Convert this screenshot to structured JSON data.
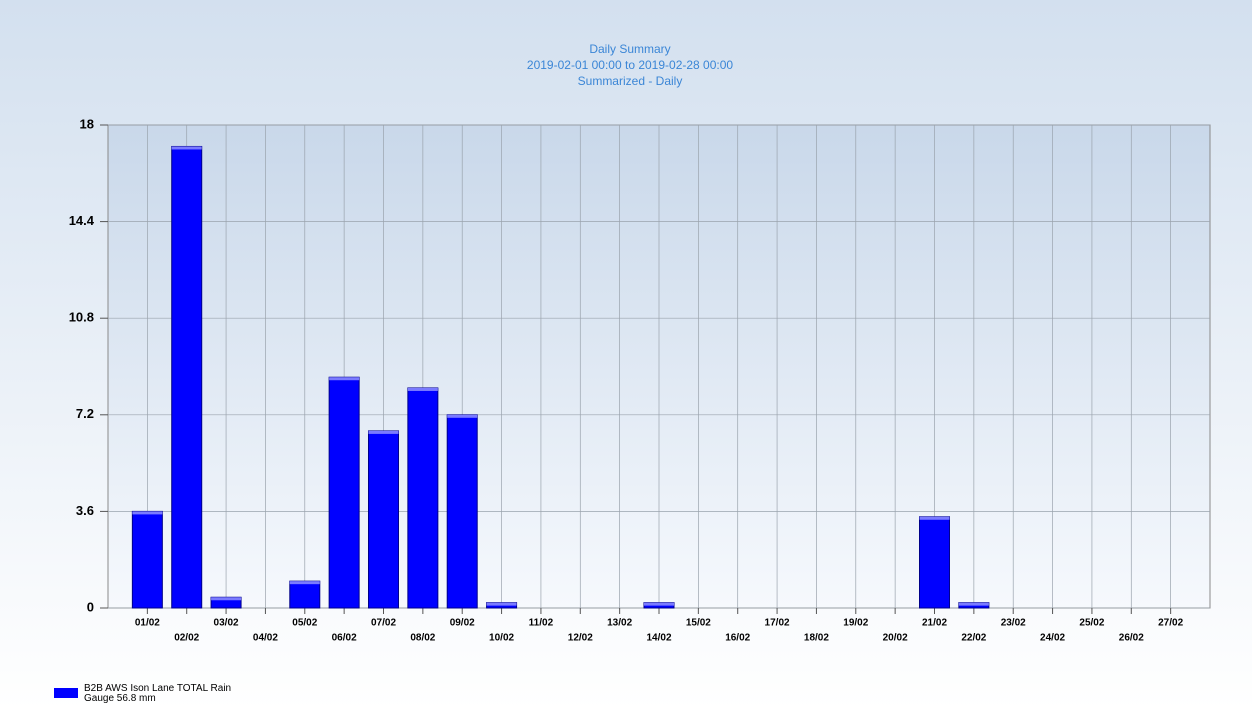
{
  "chart_data": {
    "type": "bar",
    "title": "Daily Summary",
    "subtitle": "2019-02-01 00:00 to 2019-02-28 00:00",
    "summary": "Summarized - Daily",
    "categories": [
      "01/02",
      "02/02",
      "03/02",
      "04/02",
      "05/02",
      "06/02",
      "07/02",
      "08/02",
      "09/02",
      "10/02",
      "11/02",
      "12/02",
      "13/02",
      "14/02",
      "15/02",
      "16/02",
      "17/02",
      "18/02",
      "19/02",
      "20/02",
      "21/02",
      "22/02",
      "23/02",
      "24/02",
      "25/02",
      "26/02",
      "27/02"
    ],
    "series": [
      {
        "name": "B2B AWS Ison Lane TOTAL Rain Gauge 56.8 mm",
        "color": "#0000ff",
        "values": [
          3.6,
          17.2,
          0.4,
          0,
          1.0,
          8.6,
          6.6,
          8.2,
          7.2,
          0.2,
          0,
          0,
          0,
          0.2,
          0,
          0,
          0,
          0,
          0,
          0,
          3.4,
          0.2,
          0,
          0,
          0,
          0,
          0
        ]
      }
    ],
    "ylim": [
      0,
      18
    ],
    "yticks": [
      0,
      3.6,
      7.2,
      10.8,
      14.4,
      18
    ],
    "grid": true,
    "legend": "bottom-left"
  }
}
